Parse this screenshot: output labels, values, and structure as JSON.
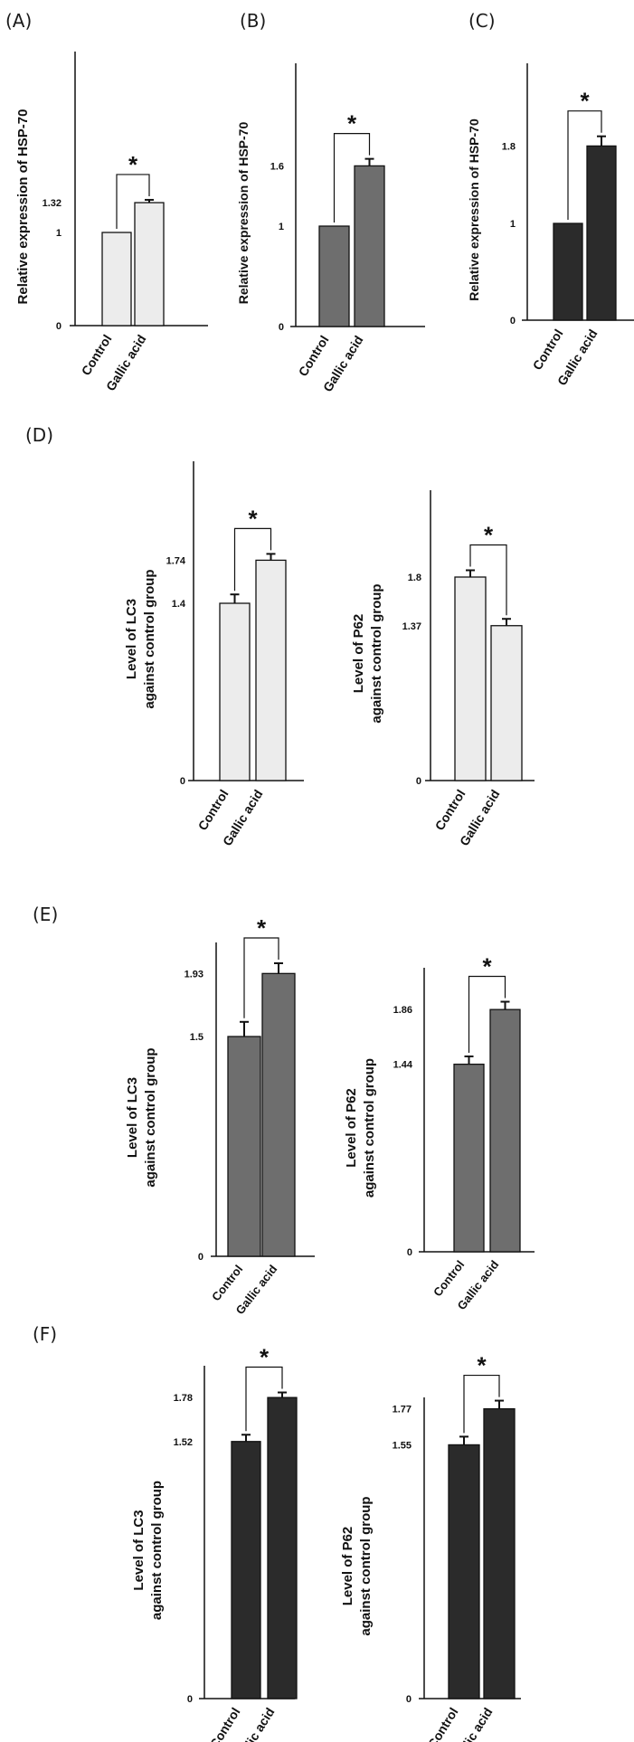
{
  "colors": {
    "light": "#ececec",
    "mid": "#6e6e6e",
    "dark": "#2b2b2b",
    "axis": "#111111"
  },
  "panel_labels": [
    "(A)",
    "(B)",
    "(C)",
    "(D)",
    "(E)",
    "(F)"
  ],
  "chart_data": [
    {
      "id": "A",
      "type": "bar",
      "ylabel": "Relative expression of HSP-70",
      "categories": [
        "Control",
        "Gallic acid"
      ],
      "values": [
        1,
        1.32
      ],
      "errors": [
        0,
        0.03
      ],
      "ticks": [
        "0",
        "1",
        "1.32"
      ],
      "significance": "*",
      "fill": "light"
    },
    {
      "id": "B",
      "type": "bar",
      "ylabel": "Relative expression of HSP-70",
      "categories": [
        "Control",
        "Gallic acid"
      ],
      "values": [
        1,
        1.6
      ],
      "errors": [
        0,
        0.07
      ],
      "ticks": [
        "0",
        "1",
        "1.6"
      ],
      "significance": "*",
      "fill": "mid"
    },
    {
      "id": "C",
      "type": "bar",
      "ylabel": "Relative expression of HSP-70",
      "categories": [
        "Control",
        "Gallic acid"
      ],
      "values": [
        1,
        1.8
      ],
      "errors": [
        0,
        0.1
      ],
      "ticks": [
        "0",
        "1",
        "1.8"
      ],
      "significance": "*",
      "fill": "dark"
    },
    {
      "id": "D1",
      "type": "bar",
      "ylabel": "Level of LC3",
      "ylabel2": "against control group",
      "categories": [
        "Control",
        "Gallic acid"
      ],
      "values": [
        1.4,
        1.74
      ],
      "errors": [
        0.07,
        0.05
      ],
      "ticks": [
        "0",
        "1.4",
        "1.74"
      ],
      "significance": "*",
      "fill": "light"
    },
    {
      "id": "D2",
      "type": "bar",
      "ylabel": "Level of P62",
      "ylabel2": "against control group",
      "categories": [
        "Control",
        "Gallic acid"
      ],
      "values": [
        1.8,
        1.37
      ],
      "errors": [
        0.06,
        0.06
      ],
      "ticks": [
        "0",
        "1.37",
        "1.8"
      ],
      "significance": "*",
      "fill": "light"
    },
    {
      "id": "E1",
      "type": "bar",
      "ylabel": "Level of LC3",
      "ylabel2": "against control group",
      "categories": [
        "Control",
        "Gallic acid"
      ],
      "values": [
        1.5,
        1.93
      ],
      "errors": [
        0.1,
        0.07
      ],
      "ticks": [
        "0",
        "1.5",
        "1.93"
      ],
      "significance": "*",
      "fill": "mid"
    },
    {
      "id": "E2",
      "type": "bar",
      "ylabel": "Level of P62",
      "ylabel2": "against control group",
      "categories": [
        "Control",
        "Gallic acid"
      ],
      "values": [
        1.44,
        1.86
      ],
      "errors": [
        0.06,
        0.06
      ],
      "ticks": [
        "0",
        "1.44",
        "1.86"
      ],
      "significance": "*",
      "fill": "mid"
    },
    {
      "id": "F1",
      "type": "bar",
      "ylabel": "Level of LC3",
      "ylabel2": "against control group",
      "categories": [
        "Control",
        "Gallic acid"
      ],
      "values": [
        1.52,
        1.78
      ],
      "errors": [
        0.04,
        0.03
      ],
      "ticks": [
        "0",
        "1.52",
        "1.78"
      ],
      "significance": "*",
      "fill": "dark"
    },
    {
      "id": "F2",
      "type": "bar",
      "ylabel": "Level of P62",
      "ylabel2": "against control group",
      "categories": [
        "Control",
        "Gallic acid"
      ],
      "values": [
        1.55,
        1.77
      ],
      "errors": [
        0.05,
        0.05
      ],
      "ticks": [
        "0",
        "1.55",
        "1.77"
      ],
      "significance": "*",
      "fill": "dark"
    }
  ]
}
